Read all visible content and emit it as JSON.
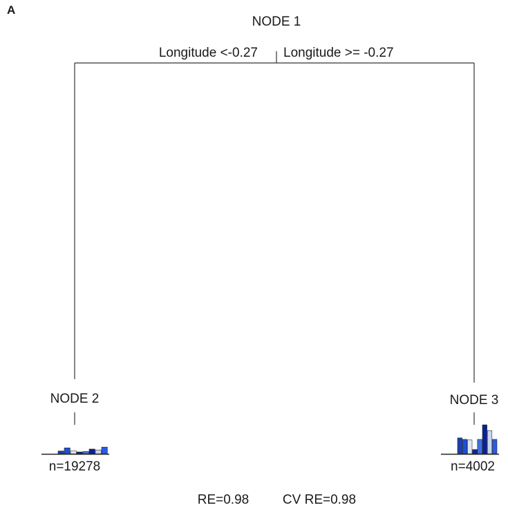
{
  "panel_label": "A",
  "nodes": {
    "root": {
      "label": "NODE 1"
    },
    "left": {
      "label": "NODE 2",
      "count": "n=19278",
      "bar_values": [
        0.3,
        0.62,
        0.3,
        0.2,
        0.25,
        0.5,
        0.4,
        0.7
      ]
    },
    "right": {
      "label": "NODE 3",
      "count": "n=4002",
      "bar_values": [
        0.55,
        0.5,
        0.48,
        0.15,
        0.5,
        1.0,
        0.8,
        0.5
      ]
    }
  },
  "split": {
    "left_label": "Longitude  <-0.27",
    "right_label": "Longitude  >= -0.27"
  },
  "footer": {
    "re": "RE=0.98",
    "cv_re": "CV RE=0.98"
  },
  "colors": {
    "line": "#333333",
    "bar_palette": [
      "#1a3fb0",
      "#1f4fd6",
      "#dfe8f3",
      "#0b2a8f",
      "#3f6fe0",
      "#08219a",
      "#c9d6ec",
      "#2c5ae0"
    ],
    "bar_edge": "#2a2a2a"
  }
}
